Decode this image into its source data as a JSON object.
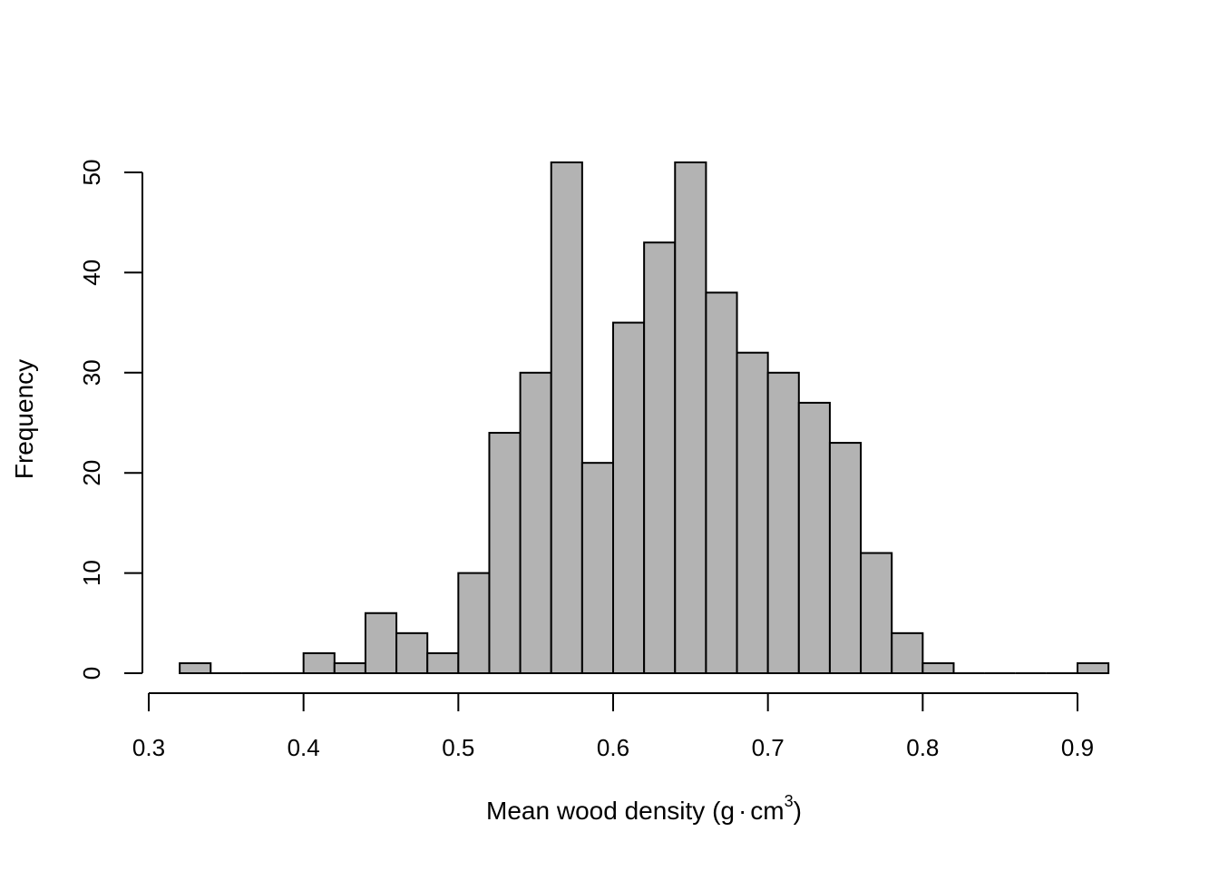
{
  "chart_data": {
    "type": "bar",
    "subtype": "histogram",
    "title": "",
    "xlabel": "Mean wood density (g",
    "xlabel_dot": "·",
    "xlabel_unit": "cm",
    "xlabel_sup": "3",
    "xlabel_close": ")",
    "ylabel": "Frequency",
    "bin_width": 0.02,
    "bins": [
      {
        "start": 0.32,
        "end": 0.34,
        "count": 1
      },
      {
        "start": 0.34,
        "end": 0.36,
        "count": 0
      },
      {
        "start": 0.36,
        "end": 0.38,
        "count": 0
      },
      {
        "start": 0.38,
        "end": 0.4,
        "count": 0
      },
      {
        "start": 0.4,
        "end": 0.42,
        "count": 2
      },
      {
        "start": 0.42,
        "end": 0.44,
        "count": 1
      },
      {
        "start": 0.44,
        "end": 0.46,
        "count": 6
      },
      {
        "start": 0.46,
        "end": 0.48,
        "count": 4
      },
      {
        "start": 0.48,
        "end": 0.5,
        "count": 2
      },
      {
        "start": 0.5,
        "end": 0.52,
        "count": 10
      },
      {
        "start": 0.52,
        "end": 0.54,
        "count": 24
      },
      {
        "start": 0.54,
        "end": 0.56,
        "count": 30
      },
      {
        "start": 0.56,
        "end": 0.58,
        "count": 51
      },
      {
        "start": 0.58,
        "end": 0.6,
        "count": 21
      },
      {
        "start": 0.6,
        "end": 0.62,
        "count": 35
      },
      {
        "start": 0.62,
        "end": 0.64,
        "count": 43
      },
      {
        "start": 0.64,
        "end": 0.66,
        "count": 51
      },
      {
        "start": 0.66,
        "end": 0.68,
        "count": 38
      },
      {
        "start": 0.68,
        "end": 0.7,
        "count": 32
      },
      {
        "start": 0.7,
        "end": 0.72,
        "count": 30
      },
      {
        "start": 0.72,
        "end": 0.74,
        "count": 27
      },
      {
        "start": 0.74,
        "end": 0.76,
        "count": 23
      },
      {
        "start": 0.76,
        "end": 0.78,
        "count": 12
      },
      {
        "start": 0.78,
        "end": 0.8,
        "count": 4
      },
      {
        "start": 0.8,
        "end": 0.82,
        "count": 1
      },
      {
        "start": 0.82,
        "end": 0.84,
        "count": 0
      },
      {
        "start": 0.84,
        "end": 0.86,
        "count": 0
      },
      {
        "start": 0.86,
        "end": 0.88,
        "count": 0
      },
      {
        "start": 0.88,
        "end": 0.9,
        "count": 0
      },
      {
        "start": 0.9,
        "end": 0.92,
        "count": 1
      }
    ],
    "xlim": [
      0.3,
      0.9
    ],
    "ylim": [
      0,
      50
    ],
    "x_ticks": [
      0.3,
      0.4,
      0.5,
      0.6,
      0.7,
      0.8,
      0.9
    ],
    "x_tick_labels": [
      "0.3",
      "0.4",
      "0.5",
      "0.6",
      "0.7",
      "0.8",
      "0.9"
    ],
    "y_ticks": [
      0,
      10,
      20,
      30,
      40,
      50
    ],
    "y_tick_labels": [
      "0",
      "10",
      "20",
      "30",
      "40",
      "50"
    ],
    "grid": false,
    "legend": "none",
    "colors": {
      "bar_fill": "#b3b3b3",
      "bar_stroke": "#000000",
      "axis": "#000000"
    }
  }
}
